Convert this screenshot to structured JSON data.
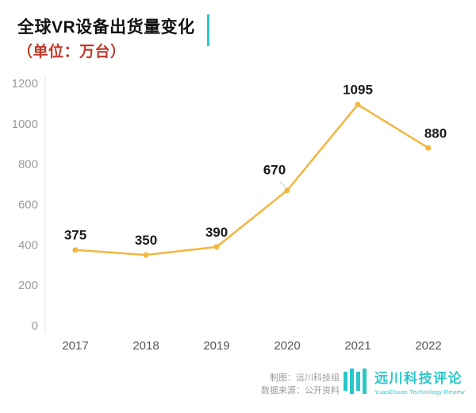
{
  "header": {
    "title": "全球VR设备出货量变化",
    "subtitle": "（单位：万台）"
  },
  "chart_data": {
    "type": "line",
    "title": "全球VR设备出货量变化",
    "unit": "万台",
    "categories": [
      "2017",
      "2018",
      "2019",
      "2020",
      "2021",
      "2022"
    ],
    "values": [
      375,
      350,
      390,
      670,
      1095,
      880
    ],
    "ylim": [
      0,
      1200
    ],
    "yticks": [
      0,
      200,
      400,
      600,
      800,
      1000,
      1200
    ],
    "grid": false,
    "legend_position": "none",
    "line_color": "#F3B63F",
    "point_color": "#F3B63F",
    "value_label_color": "#1a1a1a"
  },
  "footer": {
    "credit_author": "制图：远川科技组",
    "credit_source": "数据来源：公开资料",
    "brand_name": "远川科技评论",
    "brand_subtitle": "YuanChuan Technology Review"
  },
  "colors": {
    "accent_teal": "#2AC7C9",
    "line_yellow": "#F3B63F",
    "subtitle_red": "#C0392B",
    "y_axis_text": "#9B9B9B",
    "x_axis_text": "#555555"
  }
}
